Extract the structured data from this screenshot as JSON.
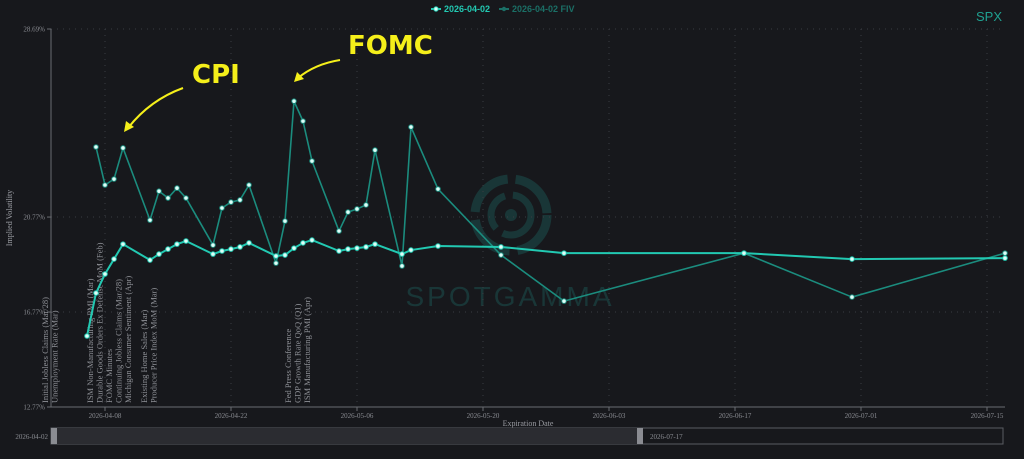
{
  "chart_data": {
    "type": "line",
    "symbol": "SPX",
    "xlabel": "Expiration Date",
    "ylabel": "Implied Volatility",
    "y_ticks": [
      "12.77%",
      "16.77%",
      "20.77%",
      "28.69%"
    ],
    "ylim": [
      12.77,
      28.69
    ],
    "x_ticks": [
      "2026-04-08",
      "2026-04-22",
      "2026-05-06",
      "2026-05-20",
      "2026-06-03",
      "2026-06-17",
      "2026-07-01",
      "2026-07-15"
    ],
    "xlim": [
      "2026-04-02",
      "2026-07-17"
    ],
    "grid": true,
    "legend_position": "top-center",
    "colors": {
      "series1": "#22c9b2",
      "series2": "#1b8c7e",
      "annotation": "#f5ef1a",
      "background": "#17181c"
    },
    "series": [
      {
        "name": "2026-04-02",
        "x": [
          "2026-04-06",
          "2026-04-07",
          "2026-04-08",
          "2026-04-09",
          "2026-04-10",
          "2026-04-13",
          "2026-04-14",
          "2026-04-15",
          "2026-04-16",
          "2026-04-17",
          "2026-04-20",
          "2026-04-21",
          "2026-04-22",
          "2026-04-23",
          "2026-04-24",
          "2026-04-27",
          "2026-04-28",
          "2026-04-29",
          "2026-04-30",
          "2026-05-01",
          "2026-05-04",
          "2026-05-05",
          "2026-05-06",
          "2026-05-07",
          "2026-05-08",
          "2026-05-11",
          "2026-05-12",
          "2026-05-15",
          "2026-05-22",
          "2026-05-29",
          "2026-06-18",
          "2026-06-30",
          "2026-07-17"
        ],
        "y": [
          15.76,
          17.57,
          18.37,
          19.0,
          19.63,
          18.96,
          19.21,
          19.42,
          19.63,
          19.76,
          19.21,
          19.34,
          19.42,
          19.51,
          19.68,
          19.13,
          19.17,
          19.46,
          19.68,
          19.8,
          19.34,
          19.42,
          19.46,
          19.51,
          19.63,
          19.21,
          19.38,
          19.55,
          19.51,
          19.25,
          19.25,
          19.0,
          19.04
        ]
      },
      {
        "name": "2026-04-02 FIV",
        "x": [
          "2026-04-07",
          "2026-04-08",
          "2026-04-09",
          "2026-04-10",
          "2026-04-13",
          "2026-04-14",
          "2026-04-15",
          "2026-04-16",
          "2026-04-17",
          "2026-04-20",
          "2026-04-21",
          "2026-04-22",
          "2026-04-23",
          "2026-04-24",
          "2026-04-27",
          "2026-04-28",
          "2026-04-29",
          "2026-04-30",
          "2026-05-01",
          "2026-05-04",
          "2026-05-05",
          "2026-05-06",
          "2026-05-07",
          "2026-05-08",
          "2026-05-11",
          "2026-05-12",
          "2026-05-15",
          "2026-05-22",
          "2026-05-29",
          "2026-06-18",
          "2026-06-30",
          "2026-07-17"
        ],
        "y": [
          23.72,
          22.12,
          22.37,
          23.68,
          20.64,
          21.86,
          21.57,
          21.99,
          21.57,
          19.59,
          21.15,
          21.4,
          21.49,
          22.12,
          18.83,
          20.6,
          25.65,
          24.81,
          23.13,
          20.18,
          20.98,
          21.11,
          21.28,
          23.59,
          18.71,
          24.56,
          21.95,
          19.17,
          17.23,
          19.25,
          17.4,
          19.25
        ]
      }
    ],
    "events": [
      {
        "date": "2026-04-02",
        "labels": [
          "Initial Jobless Claims (Mar/28)",
          "Unemployment Rate (Mar)"
        ]
      },
      {
        "date": "2026-04-07",
        "labels": [
          "ISM Non-Manufacturing PMI (Mar)",
          "Durable Goods Orders Ex Defense MoM (Feb)",
          "FOMC Minutes",
          "Continuing Jobless Claims (Mar/28)",
          "Michigan Consumer Sentiment (Apr)"
        ]
      },
      {
        "date": "2026-04-13",
        "labels": [
          "Existing Home Sales (Mar)",
          "Producer Price Index MoM (Mar)"
        ]
      },
      {
        "date": "2026-04-29",
        "labels": [
          "Fed Press Conference",
          "GDP Growth Rate QoQ (Q1)",
          "ISM Manufacturing PMI (Apr)"
        ]
      }
    ],
    "annotations": [
      {
        "text": "CPI",
        "date": "2026-04-10"
      },
      {
        "text": "FOMC",
        "date": "2026-04-29"
      }
    ],
    "watermark": "SPOTGAMMA"
  },
  "range_slider": {
    "start": "2026-04-02",
    "end": "2026-07-17",
    "selection_end": "2026-06-12"
  }
}
